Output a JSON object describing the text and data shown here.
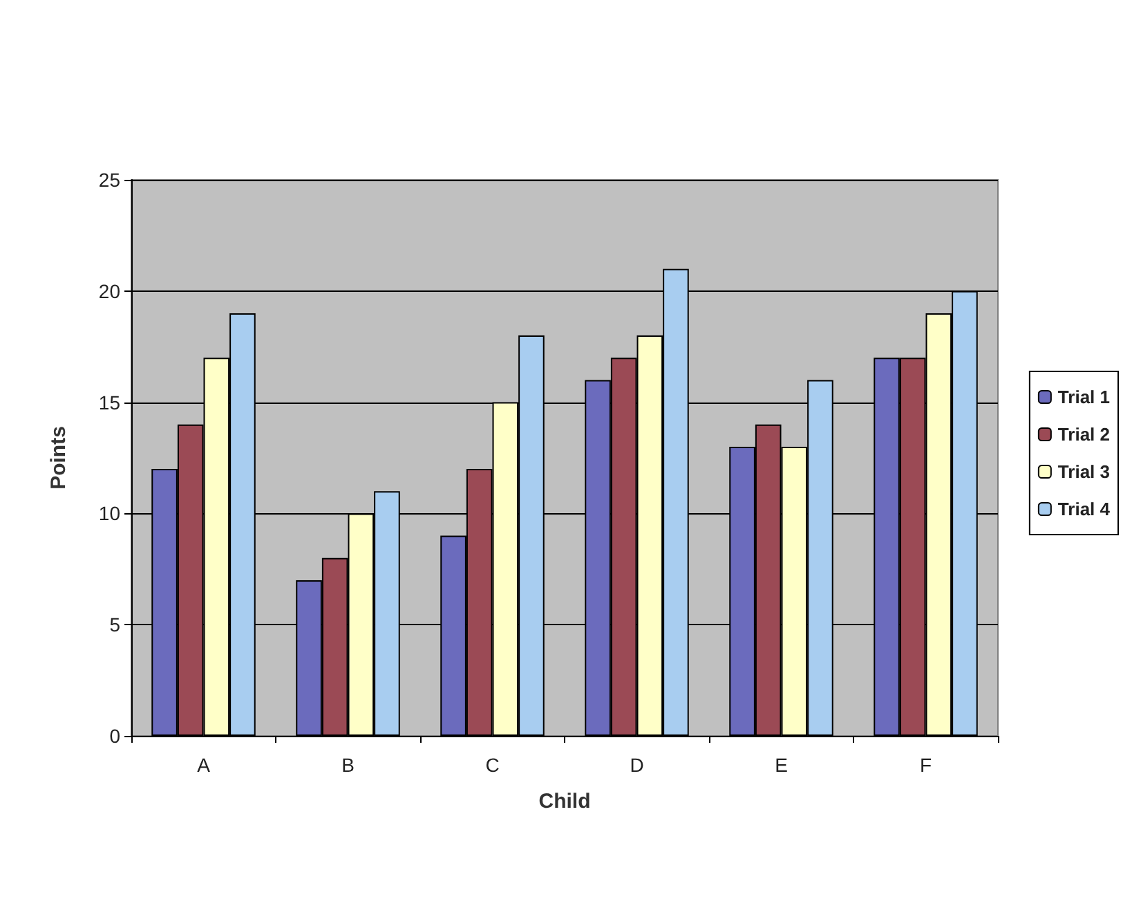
{
  "chart_data": {
    "type": "bar",
    "xlabel": "Child",
    "ylabel": "Points",
    "categories": [
      "A",
      "B",
      "C",
      "D",
      "E",
      "F"
    ],
    "series": [
      {
        "name": "Trial 1",
        "color": "#6b6bbd",
        "values": [
          12,
          7,
          9,
          16,
          13,
          17
        ]
      },
      {
        "name": "Trial 2",
        "color": "#9b4a55",
        "values": [
          14,
          8,
          12,
          17,
          14,
          17
        ]
      },
      {
        "name": "Trial 3",
        "color": "#ffffc8",
        "values": [
          17,
          10,
          15,
          18,
          13,
          19
        ]
      },
      {
        "name": "Trial 4",
        "color": "#a8cdf0",
        "values": [
          19,
          11,
          18,
          21,
          16,
          20
        ]
      }
    ],
    "ylim": [
      0,
      25
    ],
    "yticks": [
      0,
      5,
      10,
      15,
      20,
      25
    ],
    "grid": "y",
    "legend": "right"
  }
}
